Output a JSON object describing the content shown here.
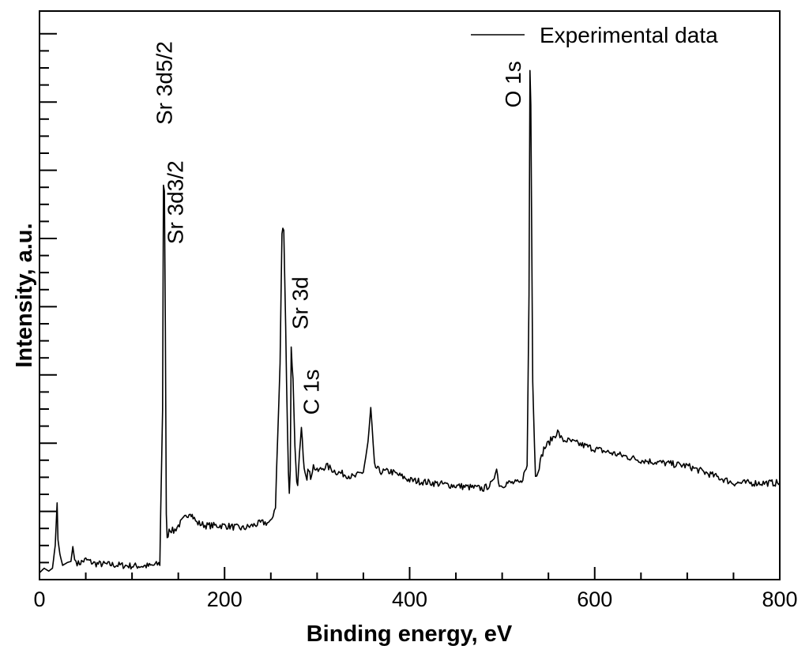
{
  "chart_data": {
    "type": "line",
    "title": "",
    "xlabel": "Binding energy, eV",
    "ylabel": "Intensity, a.u.",
    "xlim": [
      0,
      800
    ],
    "ylim": [
      0,
      1
    ],
    "x_ticks": [
      0,
      200,
      400,
      600,
      800
    ],
    "y_tick_labels": false,
    "legend": {
      "position": "top-right",
      "entries": [
        "Experimental data"
      ]
    },
    "annotations": [
      {
        "text": "Sr 3d5/2",
        "x": 143,
        "y": 0.8
      },
      {
        "text": "Sr 3d3/2",
        "x": 155,
        "y": 0.59
      },
      {
        "text": "Sr 3d",
        "x": 290,
        "y": 0.44
      },
      {
        "text": "C 1s",
        "x": 302,
        "y": 0.29
      },
      {
        "text": "O 1s",
        "x": 520,
        "y": 0.83
      }
    ],
    "series": [
      {
        "name": "Experimental data",
        "x": [
          0,
          5,
          10,
          14,
          17,
          19,
          20,
          22,
          25,
          30,
          34,
          36,
          38,
          42,
          50,
          60,
          80,
          100,
          120,
          130,
          133,
          134,
          135,
          136,
          137,
          138,
          140,
          145,
          150,
          158,
          163,
          166,
          170,
          180,
          200,
          220,
          240,
          250,
          255,
          260,
          262,
          264,
          266,
          268,
          269,
          270,
          271,
          272,
          274,
          276,
          278,
          279,
          280,
          281,
          283,
          286,
          289,
          290,
          291,
          293,
          296,
          300,
          310,
          320,
          340,
          350,
          355,
          358,
          362,
          368,
          380,
          400,
          450,
          480,
          490,
          494,
          496,
          499,
          505,
          520,
          527,
          529,
          530,
          531,
          533,
          536,
          540,
          545,
          550,
          560,
          565,
          570,
          600,
          650,
          700,
          750,
          800
        ],
        "y": [
          0.012,
          0.02,
          0.015,
          0.02,
          0.06,
          0.135,
          0.07,
          0.045,
          0.025,
          0.03,
          0.032,
          0.058,
          0.035,
          0.028,
          0.035,
          0.028,
          0.026,
          0.024,
          0.024,
          0.028,
          0.3,
          0.695,
          0.68,
          0.44,
          0.12,
          0.07,
          0.09,
          0.085,
          0.095,
          0.11,
          0.12,
          0.11,
          0.1,
          0.095,
          0.095,
          0.09,
          0.1,
          0.1,
          0.13,
          0.38,
          0.61,
          0.62,
          0.445,
          0.26,
          0.19,
          0.155,
          0.19,
          0.41,
          0.35,
          0.23,
          0.17,
          0.16,
          0.2,
          0.22,
          0.265,
          0.2,
          0.18,
          0.2,
          0.19,
          0.18,
          0.2,
          0.19,
          0.2,
          0.19,
          0.18,
          0.19,
          0.24,
          0.3,
          0.2,
          0.19,
          0.19,
          0.175,
          0.165,
          0.16,
          0.17,
          0.2,
          0.17,
          0.165,
          0.17,
          0.17,
          0.2,
          0.5,
          0.9,
          0.84,
          0.35,
          0.18,
          0.2,
          0.23,
          0.24,
          0.26,
          0.245,
          0.245,
          0.23,
          0.21,
          0.2,
          0.17,
          0.17
        ]
      }
    ]
  }
}
